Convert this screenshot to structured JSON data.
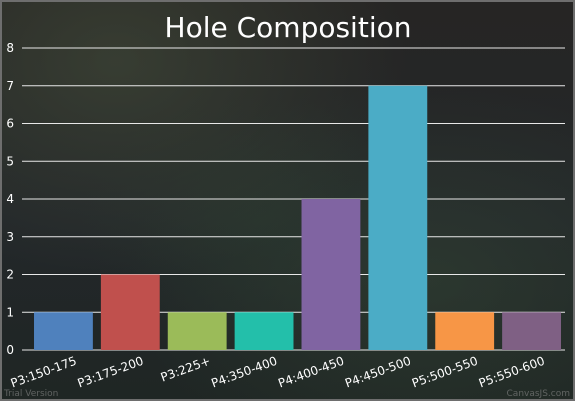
{
  "chart_data": {
    "type": "bar",
    "title": "Hole Composition",
    "categories": [
      "P3:150-175",
      "P3:175-200",
      "P3:225+",
      "P4:350-400",
      "P4:400-450",
      "P4:450-500",
      "P5:500-550",
      "P5:550-600"
    ],
    "values": [
      1,
      2,
      1,
      1,
      4,
      7,
      1,
      1
    ],
    "colors": [
      "#4f81bd",
      "#c0504d",
      "#9bbb59",
      "#23bfaa",
      "#8064a2",
      "#4bacc6",
      "#f79646",
      "#7f6084"
    ],
    "ylim": [
      0,
      8
    ],
    "y_ticks": [
      0,
      1,
      2,
      3,
      4,
      5,
      6,
      7,
      8
    ],
    "grid": true,
    "legend": "none",
    "xlabel": "",
    "ylabel": ""
  },
  "watermark_left": "Trial Version",
  "watermark_right": "CanvasJS.com"
}
